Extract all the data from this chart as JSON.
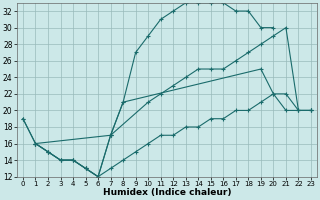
{
  "xlabel": "Humidex (Indice chaleur)",
  "bg_color": "#cce8e8",
  "grid_color": "#99bbbb",
  "line_color": "#1a6b6b",
  "xlim": [
    -0.5,
    23.5
  ],
  "ylim": [
    12,
    33
  ],
  "xticks": [
    0,
    1,
    2,
    3,
    4,
    5,
    6,
    7,
    8,
    9,
    10,
    11,
    12,
    13,
    14,
    15,
    16,
    17,
    18,
    19,
    20,
    21,
    22,
    23
  ],
  "yticks": [
    12,
    14,
    16,
    18,
    20,
    22,
    24,
    26,
    28,
    30,
    32
  ],
  "series": [
    {
      "x": [
        0,
        1,
        2,
        3,
        4,
        5,
        6,
        7,
        8,
        19,
        20,
        21,
        22,
        23
      ],
      "y": [
        19,
        16,
        15,
        14,
        14,
        13,
        12,
        17,
        21,
        25,
        22,
        22,
        20,
        20
      ]
    },
    {
      "x": [
        1,
        2,
        3,
        4,
        5,
        6,
        7,
        8,
        9,
        10,
        11,
        12,
        13,
        14,
        15,
        16,
        17,
        18,
        19,
        20
      ],
      "y": [
        16,
        15,
        14,
        14,
        13,
        12,
        17,
        21,
        27,
        29,
        31,
        32,
        33,
        33,
        33,
        33,
        32,
        32,
        30,
        30
      ]
    },
    {
      "x": [
        0,
        1,
        7,
        10,
        11,
        12,
        13,
        14,
        15,
        16,
        17,
        18,
        19,
        20,
        21,
        22,
        23
      ],
      "y": [
        19,
        16,
        17,
        21,
        22,
        23,
        24,
        25,
        25,
        25,
        26,
        27,
        28,
        29,
        30,
        20,
        20
      ]
    },
    {
      "x": [
        1,
        2,
        3,
        4,
        5,
        6,
        7,
        8,
        9,
        10,
        11,
        12,
        13,
        14,
        15,
        16,
        17,
        18,
        19,
        20,
        21,
        22,
        23
      ],
      "y": [
        16,
        15,
        14,
        14,
        13,
        12,
        13,
        14,
        15,
        16,
        17,
        17,
        18,
        18,
        19,
        19,
        20,
        20,
        21,
        22,
        20,
        20,
        20
      ]
    }
  ]
}
